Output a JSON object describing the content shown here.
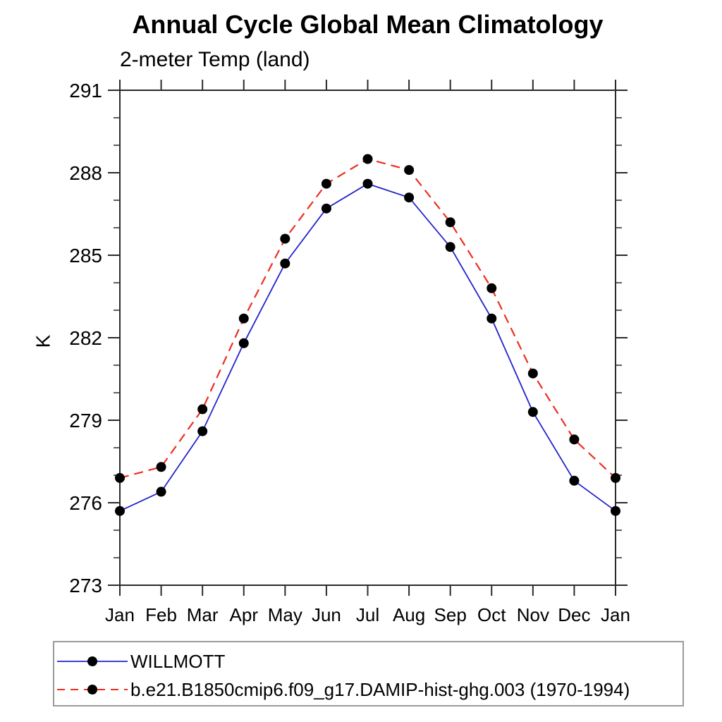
{
  "colors": {
    "willmott_line": "#2323cc",
    "model_line": "#ee2e20",
    "marker": "#000000",
    "axis": "#2b2b2b",
    "text": "#000000",
    "legend_border": "#9a9a9a"
  },
  "chart_data": {
    "type": "line",
    "title": "Annual Cycle Global Mean Climatology",
    "subtitle": "2-meter Temp (land)",
    "ylabel": "K",
    "xlabel": "",
    "x_categories": [
      "Jan",
      "Feb",
      "Mar",
      "Apr",
      "May",
      "Jun",
      "Jul",
      "Aug",
      "Sep",
      "Oct",
      "Nov",
      "Dec",
      "Jan"
    ],
    "ylim": [
      273,
      291
    ],
    "yticks_major": [
      273,
      276,
      279,
      282,
      285,
      288,
      291
    ],
    "ytick_minor_step": 1,
    "grid": false,
    "legend_position": "bottom-left-box",
    "series": [
      {
        "name": "WILLMOTT",
        "style": "solid",
        "color": "#2323cc",
        "marker": "filled-circle",
        "marker_color": "#000000",
        "values": [
          275.7,
          276.4,
          278.6,
          281.8,
          284.7,
          286.7,
          287.6,
          287.1,
          285.3,
          282.7,
          279.3,
          276.8,
          275.7
        ]
      },
      {
        "name": "b.e21.B1850cmip6.f09_g17.DAMIP-hist-ghg.003 (1970-1994)",
        "style": "dashed",
        "color": "#ee2e20",
        "marker": "filled-circle",
        "marker_color": "#000000",
        "values": [
          276.9,
          277.3,
          279.4,
          282.7,
          285.6,
          287.6,
          288.5,
          288.1,
          286.2,
          283.8,
          280.7,
          278.3,
          276.9
        ]
      }
    ]
  }
}
